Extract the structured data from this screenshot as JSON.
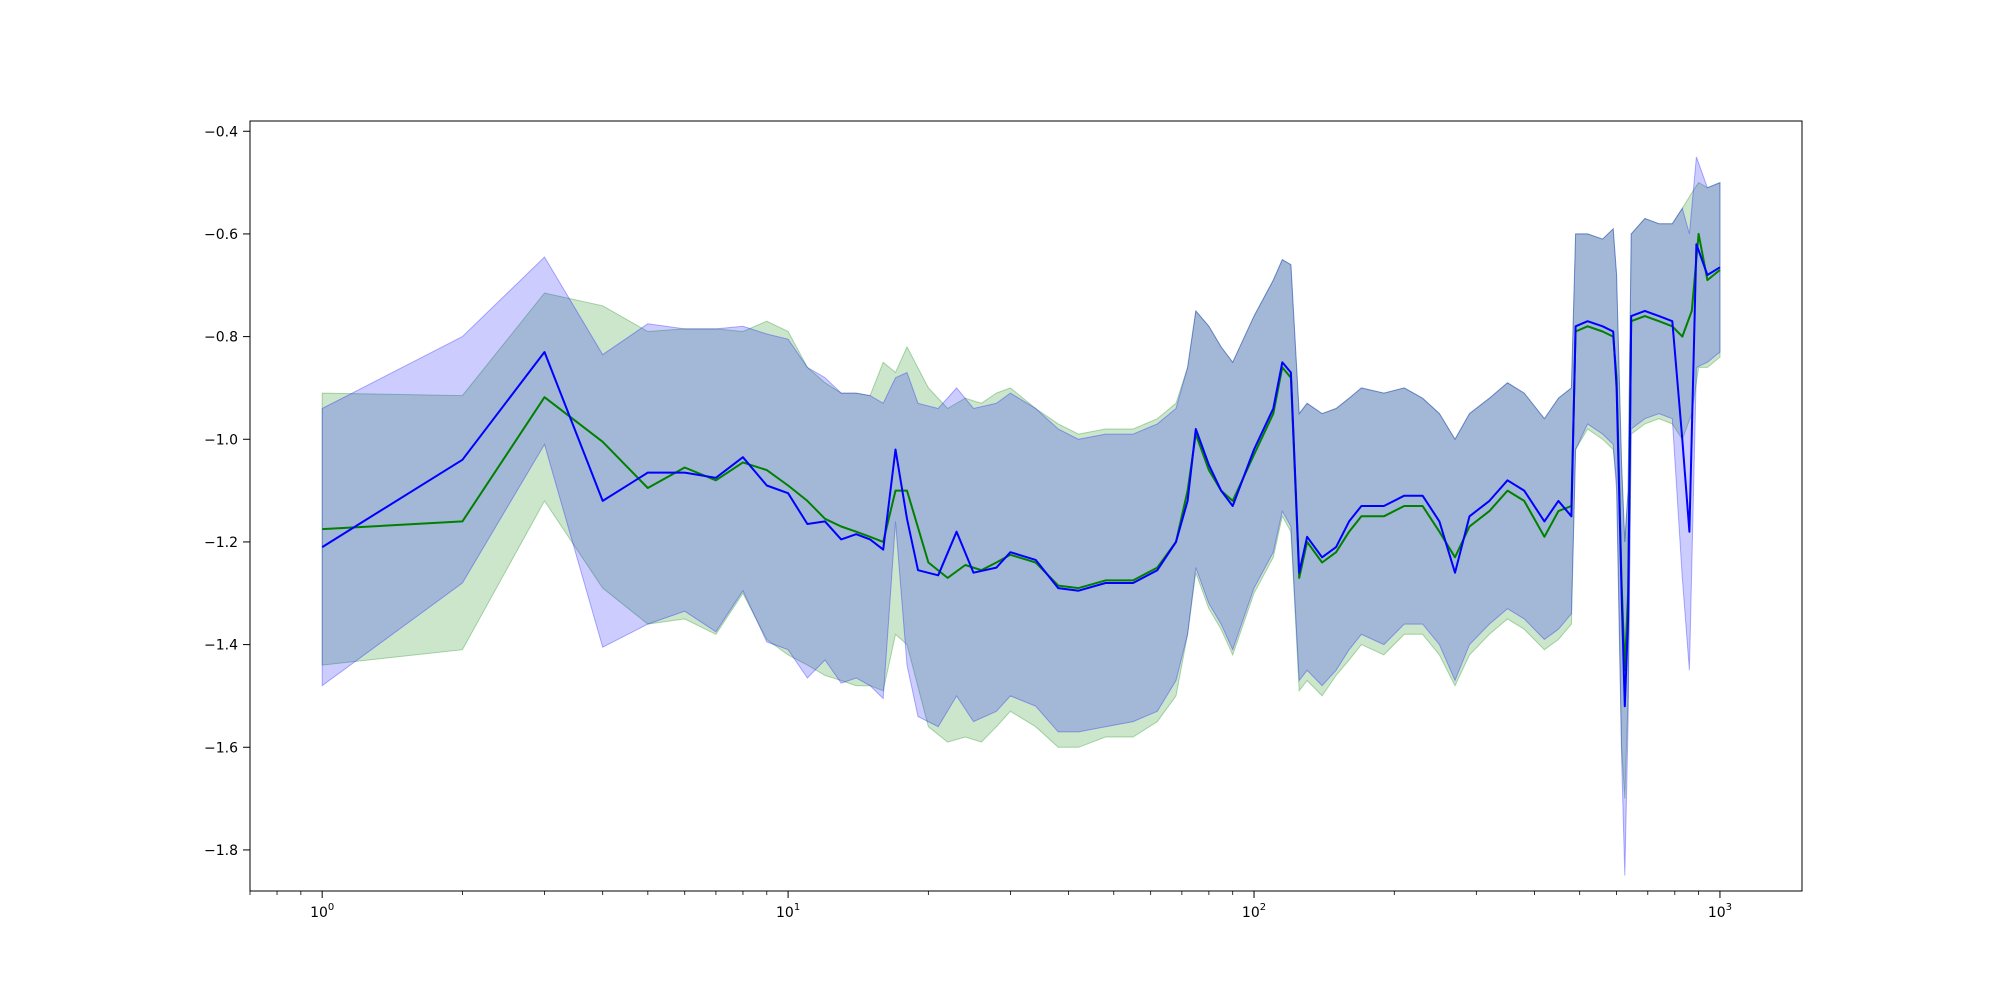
{
  "chart_data": {
    "type": "line",
    "title": "",
    "xlabel": "",
    "ylabel": "",
    "xscale": "log",
    "xlim": [
      0.7,
      1500
    ],
    "ylim": [
      -1.88,
      -0.38
    ],
    "grid": false,
    "legend": "none",
    "x_tick_labels": [
      {
        "value": 1,
        "base": "10",
        "exp": "0"
      },
      {
        "value": 10,
        "base": "10",
        "exp": "1"
      },
      {
        "value": 100,
        "base": "10",
        "exp": "2"
      },
      {
        "value": 1000,
        "base": "10",
        "exp": "3"
      }
    ],
    "y_ticks": [
      -0.4,
      -0.6,
      -0.8,
      -1.0,
      -1.2,
      -1.4,
      -1.6,
      -1.8
    ],
    "y_tick_labels": [
      "−0.4",
      "−0.6",
      "−0.8",
      "−1.0",
      "−1.2",
      "−1.4",
      "−1.6",
      "−1.8"
    ],
    "series": [
      {
        "color": "#008000",
        "band_color": "#008000",
        "band_opacity": 0.2,
        "points": [
          [
            1,
            -1.175,
            -0.91,
            -1.44
          ],
          [
            2,
            -1.16,
            -0.915,
            -1.41
          ],
          [
            3,
            -0.918,
            -0.715,
            -1.12
          ],
          [
            4,
            -1.005,
            -0.74,
            -1.29
          ],
          [
            5,
            -1.095,
            -0.79,
            -1.36
          ],
          [
            6,
            -1.055,
            -0.785,
            -1.35
          ],
          [
            7,
            -1.08,
            -0.785,
            -1.38
          ],
          [
            8,
            -1.045,
            -0.79,
            -1.3
          ],
          [
            9,
            -1.06,
            -0.77,
            -1.39
          ],
          [
            10,
            -1.09,
            -0.79,
            -1.42
          ],
          [
            11,
            -1.12,
            -0.86,
            -1.44
          ],
          [
            12,
            -1.155,
            -0.89,
            -1.46
          ],
          [
            13,
            -1.17,
            -0.91,
            -1.47
          ],
          [
            14,
            -1.18,
            -0.91,
            -1.48
          ],
          [
            15,
            -1.19,
            -0.915,
            -1.48
          ],
          [
            16,
            -1.2,
            -0.85,
            -1.49
          ],
          [
            17,
            -1.1,
            -0.87,
            -1.38
          ],
          [
            18,
            -1.1,
            -0.82,
            -1.4
          ],
          [
            20,
            -1.24,
            -0.9,
            -1.56
          ],
          [
            22,
            -1.27,
            -0.94,
            -1.59
          ],
          [
            24,
            -1.245,
            -0.92,
            -1.58
          ],
          [
            26,
            -1.255,
            -0.93,
            -1.59
          ],
          [
            28,
            -1.24,
            -0.91,
            -1.56
          ],
          [
            30,
            -1.225,
            -0.9,
            -1.53
          ],
          [
            34,
            -1.24,
            -0.94,
            -1.56
          ],
          [
            38,
            -1.285,
            -0.97,
            -1.6
          ],
          [
            42,
            -1.29,
            -0.99,
            -1.6
          ],
          [
            48,
            -1.275,
            -0.98,
            -1.58
          ],
          [
            55,
            -1.275,
            -0.98,
            -1.58
          ],
          [
            62,
            -1.25,
            -0.96,
            -1.55
          ],
          [
            68,
            -1.2,
            -0.93,
            -1.5
          ],
          [
            72,
            -1.1,
            -0.86,
            -1.38
          ],
          [
            75,
            -0.99,
            -0.75,
            -1.26
          ],
          [
            80,
            -1.06,
            -0.78,
            -1.33
          ],
          [
            85,
            -1.1,
            -0.82,
            -1.37
          ],
          [
            90,
            -1.12,
            -0.85,
            -1.42
          ],
          [
            100,
            -1.03,
            -0.76,
            -1.3
          ],
          [
            110,
            -0.95,
            -0.69,
            -1.23
          ],
          [
            115,
            -0.86,
            -0.65,
            -1.15
          ],
          [
            120,
            -0.88,
            -0.66,
            -1.18
          ],
          [
            125,
            -1.27,
            -0.95,
            -1.49
          ],
          [
            130,
            -1.2,
            -0.93,
            -1.47
          ],
          [
            140,
            -1.24,
            -0.95,
            -1.5
          ],
          [
            150,
            -1.22,
            -0.94,
            -1.46
          ],
          [
            160,
            -1.18,
            -0.92,
            -1.43
          ],
          [
            170,
            -1.15,
            -0.9,
            -1.4
          ],
          [
            190,
            -1.15,
            -0.91,
            -1.42
          ],
          [
            210,
            -1.13,
            -0.9,
            -1.38
          ],
          [
            230,
            -1.13,
            -0.92,
            -1.38
          ],
          [
            250,
            -1.18,
            -0.95,
            -1.42
          ],
          [
            270,
            -1.23,
            -1.0,
            -1.48
          ],
          [
            290,
            -1.17,
            -0.95,
            -1.42
          ],
          [
            320,
            -1.14,
            -0.92,
            -1.38
          ],
          [
            350,
            -1.1,
            -0.89,
            -1.35
          ],
          [
            380,
            -1.12,
            -0.91,
            -1.37
          ],
          [
            420,
            -1.19,
            -0.96,
            -1.41
          ],
          [
            450,
            -1.14,
            -0.92,
            -1.39
          ],
          [
            480,
            -1.13,
            -0.9,
            -1.36
          ],
          [
            490,
            -0.79,
            -0.6,
            -1.02
          ],
          [
            520,
            -0.78,
            -0.6,
            -0.98
          ],
          [
            560,
            -0.79,
            -0.61,
            -1.0
          ],
          [
            590,
            -0.8,
            -0.59,
            -1.02
          ],
          [
            600,
            -0.88,
            -0.68,
            -1.08
          ],
          [
            615,
            -1.28,
            -1.05,
            -1.6
          ],
          [
            625,
            -1.45,
            -1.2,
            -1.7
          ],
          [
            635,
            -1.3,
            -1.1,
            -1.5
          ],
          [
            645,
            -0.77,
            -0.6,
            -0.99
          ],
          [
            690,
            -0.76,
            -0.57,
            -0.97
          ],
          [
            740,
            -0.77,
            -0.58,
            -0.96
          ],
          [
            790,
            -0.78,
            -0.58,
            -0.97
          ],
          [
            830,
            -0.8,
            -0.55,
            -1.0
          ],
          [
            870,
            -0.75,
            -0.52,
            -0.95
          ],
          [
            900,
            -0.6,
            -0.5,
            -0.86
          ],
          [
            940,
            -0.69,
            -0.51,
            -0.86
          ],
          [
            1000,
            -0.67,
            -0.5,
            -0.84
          ]
        ]
      },
      {
        "color": "#0000ff",
        "band_color": "#0000ff",
        "band_opacity": 0.2,
        "points": [
          [
            1,
            -1.21,
            -0.94,
            -1.48
          ],
          [
            2,
            -1.04,
            -0.8,
            -1.28
          ],
          [
            3,
            -0.83,
            -0.645,
            -1.01
          ],
          [
            4,
            -1.12,
            -0.835,
            -1.405
          ],
          [
            5,
            -1.065,
            -0.775,
            -1.36
          ],
          [
            6,
            -1.065,
            -0.785,
            -1.335
          ],
          [
            7,
            -1.075,
            -0.785,
            -1.375
          ],
          [
            8,
            -1.035,
            -0.78,
            -1.295
          ],
          [
            9,
            -1.09,
            -0.795,
            -1.395
          ],
          [
            10,
            -1.105,
            -0.805,
            -1.41
          ],
          [
            11,
            -1.165,
            -0.86,
            -1.465
          ],
          [
            12,
            -1.16,
            -0.88,
            -1.43
          ],
          [
            13,
            -1.195,
            -0.91,
            -1.475
          ],
          [
            14,
            -1.185,
            -0.91,
            -1.465
          ],
          [
            15,
            -1.195,
            -0.915,
            -1.48
          ],
          [
            16,
            -1.215,
            -0.93,
            -1.505
          ],
          [
            17,
            -1.02,
            -0.88,
            -1.16
          ],
          [
            18,
            -1.155,
            -0.87,
            -1.44
          ],
          [
            19,
            -1.255,
            -0.93,
            -1.54
          ],
          [
            21,
            -1.265,
            -0.94,
            -1.56
          ],
          [
            23,
            -1.18,
            -0.9,
            -1.5
          ],
          [
            25,
            -1.26,
            -0.94,
            -1.55
          ],
          [
            28,
            -1.25,
            -0.93,
            -1.53
          ],
          [
            30,
            -1.22,
            -0.91,
            -1.5
          ],
          [
            34,
            -1.235,
            -0.94,
            -1.52
          ],
          [
            38,
            -1.29,
            -0.98,
            -1.57
          ],
          [
            42,
            -1.295,
            -1.0,
            -1.57
          ],
          [
            48,
            -1.28,
            -0.99,
            -1.56
          ],
          [
            55,
            -1.28,
            -0.99,
            -1.55
          ],
          [
            62,
            -1.255,
            -0.97,
            -1.53
          ],
          [
            68,
            -1.2,
            -0.94,
            -1.47
          ],
          [
            72,
            -1.12,
            -0.86,
            -1.38
          ],
          [
            75,
            -0.98,
            -0.75,
            -1.25
          ],
          [
            80,
            -1.05,
            -0.78,
            -1.32
          ],
          [
            85,
            -1.1,
            -0.82,
            -1.36
          ],
          [
            90,
            -1.13,
            -0.85,
            -1.41
          ],
          [
            100,
            -1.02,
            -0.76,
            -1.29
          ],
          [
            110,
            -0.94,
            -0.69,
            -1.22
          ],
          [
            115,
            -0.85,
            -0.65,
            -1.14
          ],
          [
            120,
            -0.87,
            -0.66,
            -1.17
          ],
          [
            125,
            -1.26,
            -0.95,
            -1.47
          ],
          [
            130,
            -1.19,
            -0.93,
            -1.45
          ],
          [
            140,
            -1.23,
            -0.95,
            -1.48
          ],
          [
            150,
            -1.21,
            -0.94,
            -1.45
          ],
          [
            160,
            -1.16,
            -0.92,
            -1.41
          ],
          [
            170,
            -1.13,
            -0.9,
            -1.38
          ],
          [
            190,
            -1.13,
            -0.91,
            -1.4
          ],
          [
            210,
            -1.11,
            -0.9,
            -1.36
          ],
          [
            230,
            -1.11,
            -0.92,
            -1.36
          ],
          [
            250,
            -1.16,
            -0.95,
            -1.4
          ],
          [
            270,
            -1.26,
            -1.0,
            -1.47
          ],
          [
            290,
            -1.15,
            -0.95,
            -1.4
          ],
          [
            320,
            -1.12,
            -0.92,
            -1.36
          ],
          [
            350,
            -1.08,
            -0.89,
            -1.33
          ],
          [
            380,
            -1.1,
            -0.91,
            -1.35
          ],
          [
            420,
            -1.16,
            -0.96,
            -1.39
          ],
          [
            450,
            -1.12,
            -0.92,
            -1.37
          ],
          [
            480,
            -1.15,
            -0.9,
            -1.34
          ],
          [
            490,
            -0.78,
            -0.6,
            -1.02
          ],
          [
            520,
            -0.77,
            -0.6,
            -0.97
          ],
          [
            560,
            -0.78,
            -0.61,
            -0.99
          ],
          [
            590,
            -0.79,
            -0.59,
            -1.01
          ],
          [
            600,
            -0.9,
            -0.68,
            -1.1
          ],
          [
            615,
            -1.3,
            -1.05,
            -1.62
          ],
          [
            625,
            -1.52,
            -1.2,
            -1.85
          ],
          [
            635,
            -1.35,
            -1.1,
            -1.55
          ],
          [
            645,
            -0.76,
            -0.6,
            -0.98
          ],
          [
            690,
            -0.75,
            -0.57,
            -0.96
          ],
          [
            740,
            -0.76,
            -0.58,
            -0.95
          ],
          [
            790,
            -0.77,
            -0.58,
            -0.96
          ],
          [
            830,
            -1.0,
            -0.55,
            -1.27
          ],
          [
            860,
            -1.18,
            -0.6,
            -1.45
          ],
          [
            890,
            -0.62,
            -0.45,
            -0.86
          ],
          [
            940,
            -0.68,
            -0.51,
            -0.85
          ],
          [
            1000,
            -0.665,
            -0.5,
            -0.83
          ]
        ]
      }
    ]
  }
}
